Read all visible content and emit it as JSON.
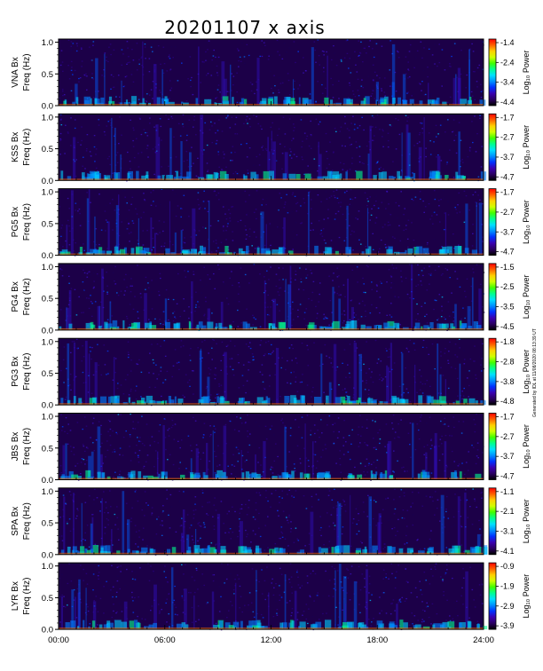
{
  "title": "20201107 x axis",
  "side_note": "Generated by IDL at 11/08/2020 08:13:39 UT",
  "chart_data": {
    "type": "heatmap",
    "title": "20201107 x axis",
    "x_ticks": [
      "00:00",
      "06:00",
      "12:00",
      "18:00",
      "24:00"
    ],
    "xlim": [
      0,
      24
    ],
    "y_ticks": [
      "0.0",
      "0.5",
      "1.0"
    ],
    "ylim": [
      0,
      1.05
    ],
    "colorbar_label": "Log₁₀ Power",
    "ylabel_freq": "Freq (Hz)",
    "panels": [
      {
        "station": "VNA Bx",
        "cbar_ticks": [
          "-1.4",
          "-2.4",
          "-3.4",
          "-4.4"
        ]
      },
      {
        "station": "KSS Bx",
        "cbar_ticks": [
          "-1.7",
          "-2.7",
          "-3.7",
          "-4.7"
        ]
      },
      {
        "station": "PG5 Bx",
        "cbar_ticks": [
          "-1.7",
          "-2.7",
          "-3.7",
          "-4.7"
        ]
      },
      {
        "station": "PG4 Bx",
        "cbar_ticks": [
          "-1.5",
          "-2.5",
          "-3.5",
          "-4.5"
        ]
      },
      {
        "station": "PG3 Bx",
        "cbar_ticks": [
          "-1.8",
          "-2.8",
          "-3.8",
          "-4.8"
        ]
      },
      {
        "station": "JBS Bx",
        "cbar_ticks": [
          "-1.7",
          "-2.7",
          "-3.7",
          "-4.7"
        ]
      },
      {
        "station": "SPA Bx",
        "cbar_ticks": [
          "-1.1",
          "-2.1",
          "-3.1",
          "-4.1"
        ]
      },
      {
        "station": "LYR Bx",
        "cbar_ticks": [
          "-0.9",
          "-1.9",
          "-2.9",
          "-3.9"
        ]
      }
    ],
    "colormap": [
      "#000000",
      "#2a0060",
      "#3a00b0",
      "#0030ff",
      "#0090ff",
      "#00e0ff",
      "#00ff90",
      "#40ff00",
      "#d0ff00",
      "#ffd000",
      "#ff6000",
      "#ff0000"
    ]
  }
}
